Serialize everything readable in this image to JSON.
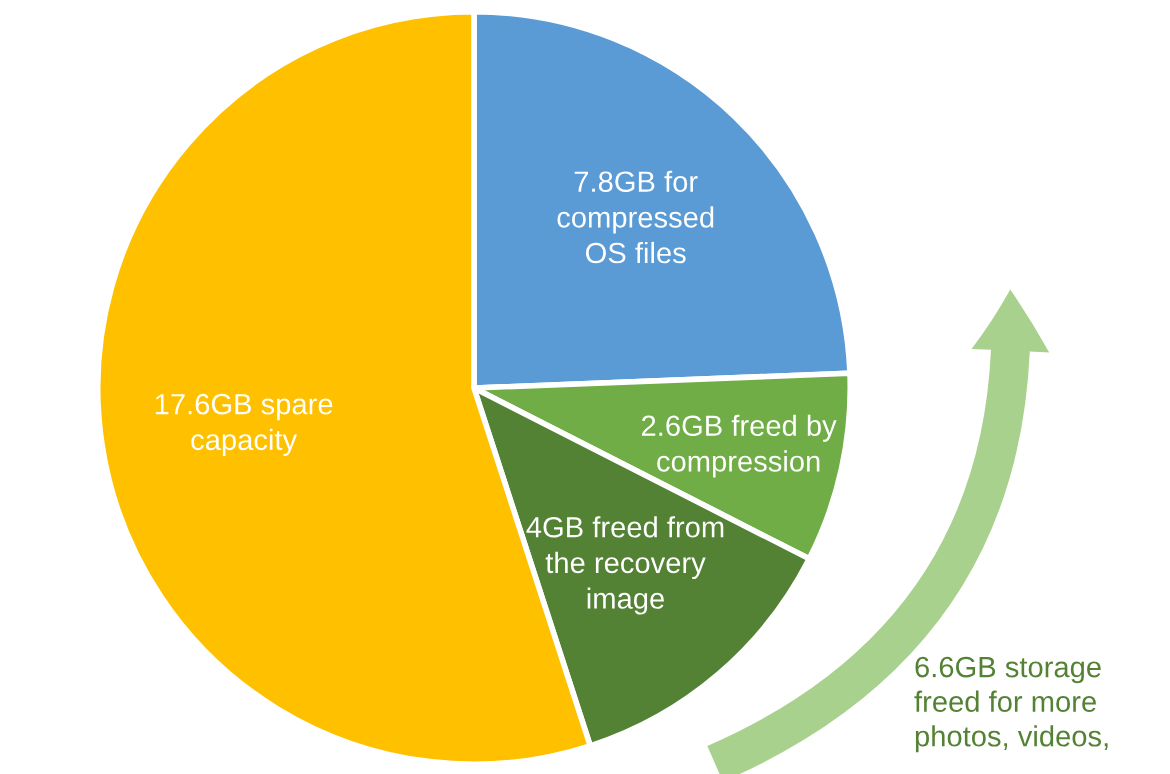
{
  "chart_data": {
    "type": "pie",
    "categories": [
      "7.8GB for\ncompressed\nOS files",
      "2.6GB freed by\ncompression",
      "4GB freed from\nthe recovery\nimage",
      "17.6GB spare\ncapacity"
    ],
    "values": [
      7.8,
      2.6,
      4,
      17.6
    ],
    "colors": [
      "#5b9bd5",
      "#70ad47",
      "#548235",
      "#ffc000"
    ],
    "annotations": [
      "6.6GB storage\nfreed for more\nphotos, videos,"
    ]
  }
}
